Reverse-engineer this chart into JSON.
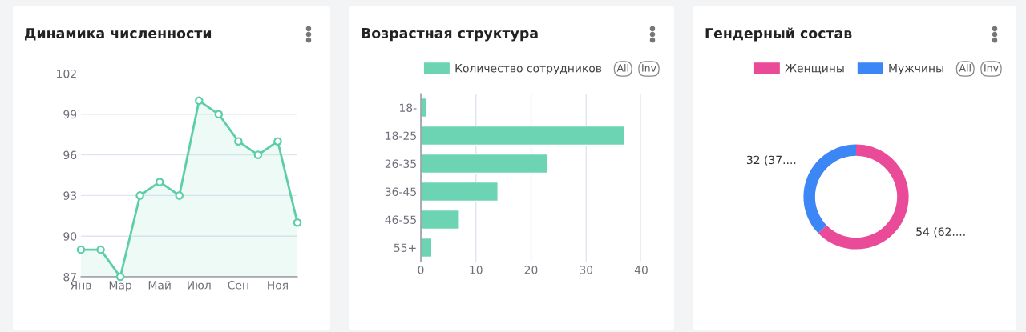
{
  "chart_data": [
    {
      "type": "line",
      "title": "Динамика численности",
      "categories": [
        "Янв",
        null,
        "Мар",
        null,
        "Май",
        null,
        "Июл",
        null,
        "Сен",
        null,
        "Ноя",
        null
      ],
      "series": [
        {
          "color": "#5ccfa7",
          "values": [
            89,
            89,
            87,
            93,
            94,
            93,
            100,
            99,
            97,
            96,
            97,
            91
          ]
        }
      ],
      "ylim": [
        87,
        102
      ],
      "yticks": [
        87,
        90,
        93,
        96,
        99,
        102
      ],
      "grid": "y",
      "marker": "circle"
    },
    {
      "type": "bar",
      "title": "Возрастная структура",
      "orientation": "horizontal",
      "categories": [
        "18-",
        "18-25",
        "26-35",
        "36-45",
        "46-55",
        "55+"
      ],
      "series": [
        {
          "name": "Количество сотрудников",
          "color": "#6cd4b3",
          "values": [
            1,
            37,
            23,
            14,
            7,
            2
          ]
        }
      ],
      "xlim": [
        0,
        40
      ],
      "xticks": [
        0,
        10,
        20,
        30,
        40
      ],
      "grid": "x",
      "legend": "top",
      "annotations": [
        "All",
        "Inv"
      ]
    },
    {
      "type": "donut",
      "title": "Гендерный состав",
      "categories": [
        "Женщины",
        "Мужчины"
      ],
      "values": [
        54,
        32
      ],
      "colors": [
        "#ea4b98",
        "#3d86f5"
      ],
      "value_labels": [
        "54 (62....",
        "32 (37...."
      ],
      "legend": "top",
      "annotations": [
        "All",
        "Inv"
      ]
    }
  ]
}
